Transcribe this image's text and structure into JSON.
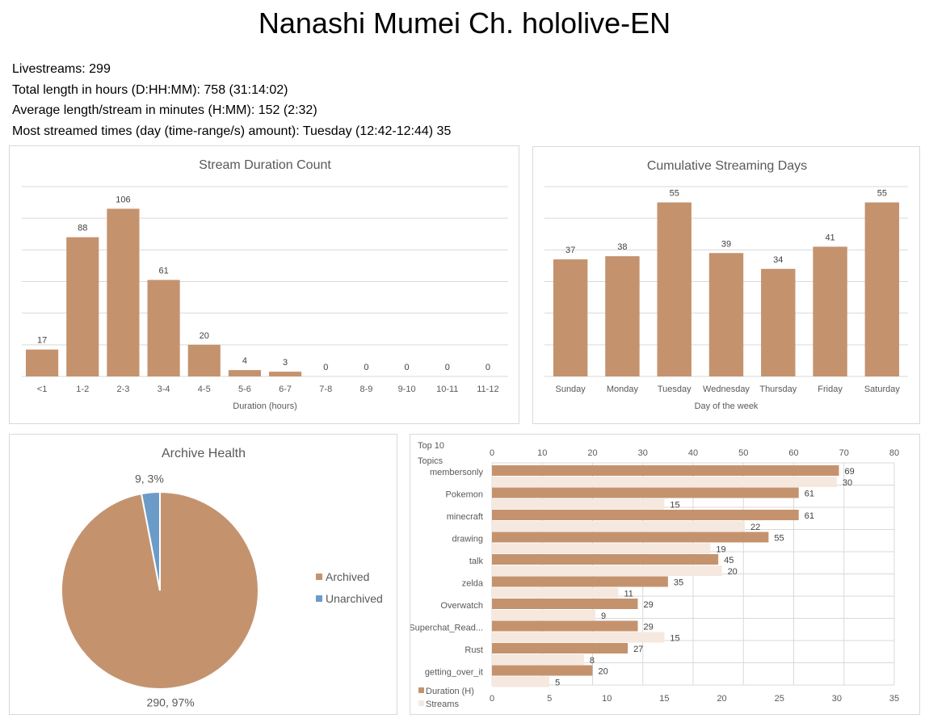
{
  "page": {
    "title": "Nanashi Mumei Ch. hololive-EN",
    "stats": [
      "Livestreams: 299",
      "Total length in hours (D:HH:MM): 758 (31:14:02)",
      "Average length/stream in minutes (H:MM): 152 (2:32)",
      "Most streamed times (day (time-range/s) amount): Tuesday (12:42-12:44) 35"
    ]
  },
  "colors": {
    "duration": "#c4936e",
    "streams": "#f5e8df",
    "archived": "#c4936e",
    "unarchived": "#6b9cc8"
  },
  "chart_data": [
    {
      "type": "bar",
      "title": "Stream Duration Count",
      "xlabel": "Duration (hours)",
      "ylabel": "",
      "categories": [
        "<1",
        "1-2",
        "2-3",
        "3-4",
        "4-5",
        "5-6",
        "6-7",
        "7-8",
        "8-9",
        "9-10",
        "10-11",
        "11-12"
      ],
      "values": [
        17,
        88,
        106,
        61,
        20,
        4,
        3,
        0,
        0,
        0,
        0,
        0
      ],
      "ylim": [
        0,
        120
      ],
      "grid": true
    },
    {
      "type": "bar",
      "title": "Cumulative Streaming Days",
      "xlabel": "Day of the week",
      "ylabel": "",
      "categories": [
        "Sunday",
        "Monday",
        "Tuesday",
        "Wednesday",
        "Thursday",
        "Friday",
        "Saturday"
      ],
      "values": [
        37,
        38,
        55,
        39,
        34,
        41,
        55
      ],
      "ylim": [
        0,
        60
      ],
      "grid": true
    },
    {
      "type": "pie",
      "title": "Archive Health",
      "categories": [
        "Archived",
        "Unarchived"
      ],
      "values": [
        290,
        9
      ],
      "labels": [
        "290, 97%",
        "9, 3%"
      ],
      "legend": "right"
    },
    {
      "type": "bar",
      "orientation": "horizontal",
      "title": "Top 10 Topics",
      "categories": [
        "membersonly",
        "Pokemon",
        "minecraft",
        "drawing",
        "talk",
        "zelda",
        "Overwatch",
        "Superchat_Read...",
        "Rust",
        "getting_over_it"
      ],
      "series": [
        {
          "name": "Duration (H)",
          "values": [
            69,
            61,
            61,
            55,
            45,
            35,
            29,
            29,
            27,
            20
          ],
          "axis": "top",
          "xlim": [
            0,
            80
          ],
          "ticks": [
            "0",
            "10",
            "20",
            "30",
            "40",
            "50",
            "60",
            "70",
            "80"
          ]
        },
        {
          "name": "Streams",
          "values": [
            30,
            15,
            22,
            19,
            20,
            11,
            9,
            15,
            8,
            5
          ],
          "axis": "bottom",
          "xlim": [
            0,
            35
          ],
          "ticks": [
            "0",
            "5",
            "10",
            "15",
            "20",
            "25",
            "30",
            "35"
          ]
        }
      ],
      "legend": "bottom-left",
      "grid": true
    }
  ]
}
